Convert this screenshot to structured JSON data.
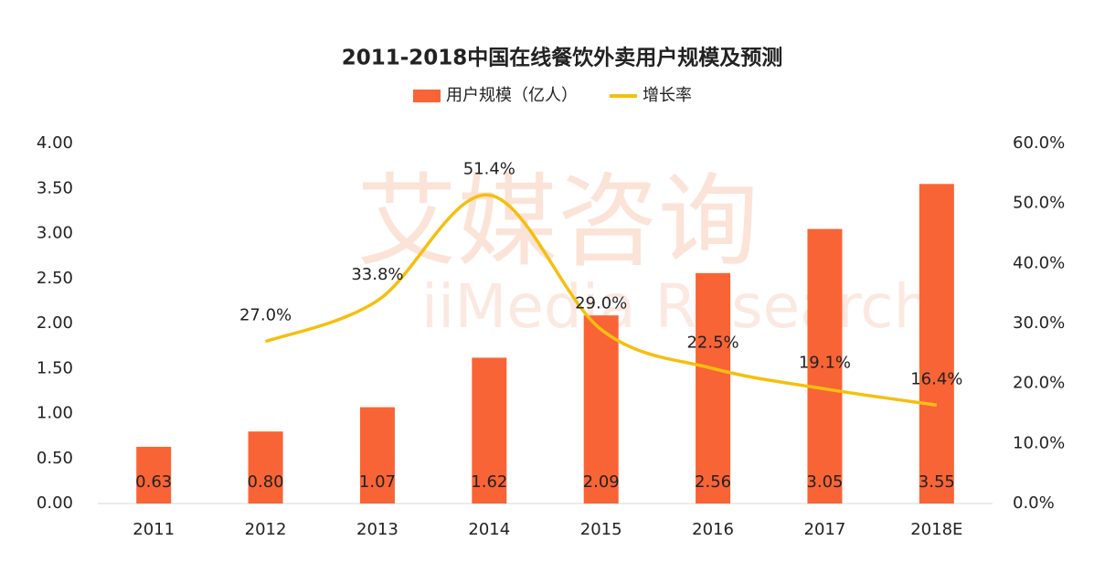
{
  "chart_data": {
    "type": "bar_line",
    "title": "2011-2018中国在线餐饮外卖用户规模及预测",
    "watermark": "艾媒咨询",
    "watermark_en": "iiMedia Research",
    "categories": [
      "2011",
      "2012",
      "2013",
      "2014",
      "2015",
      "2016",
      "2017",
      "2018E"
    ],
    "series": [
      {
        "name": "用户规模（亿人）",
        "type": "bar",
        "color": "#f86436",
        "values": [
          0.63,
          0.8,
          1.07,
          1.62,
          2.09,
          2.56,
          3.05,
          3.55
        ],
        "value_labels": [
          "0.63",
          "0.80",
          "1.07",
          "1.62",
          "2.09",
          "2.56",
          "3.05",
          "3.55"
        ]
      },
      {
        "name": "增长率",
        "type": "line",
        "axis": "y2",
        "color": "#f5bf0e",
        "values": [
          null,
          27.0,
          33.8,
          51.4,
          29.0,
          22.5,
          19.1,
          16.4
        ],
        "value_labels": [
          null,
          "27.0%",
          "33.8%",
          "51.4%",
          "29.0%",
          "22.5%",
          "19.1%",
          "16.4%"
        ]
      }
    ],
    "ylim": [
      0,
      4
    ],
    "yticks": [
      {
        "value": 0,
        "label": "0.00"
      },
      {
        "value": 0.5,
        "label": "0.50"
      },
      {
        "value": 1,
        "label": "1.00"
      },
      {
        "value": 1.5,
        "label": "1.50"
      },
      {
        "value": 2,
        "label": "2.00"
      },
      {
        "value": 2.5,
        "label": "2.50"
      },
      {
        "value": 3,
        "label": "3.00"
      },
      {
        "value": 3.5,
        "label": "3.50"
      },
      {
        "value": 4,
        "label": "4.00"
      }
    ],
    "y2lim": [
      0,
      60
    ],
    "y2ticks": [
      {
        "value": 0,
        "label": "0.0%"
      },
      {
        "value": 10,
        "label": "10.0%"
      },
      {
        "value": 20,
        "label": "20.0%"
      },
      {
        "value": 30,
        "label": "30.0%"
      },
      {
        "value": 40,
        "label": "40.0%"
      },
      {
        "value": 50,
        "label": "50.0%"
      },
      {
        "value": 60,
        "label": "60.0%"
      }
    ],
    "grid": false
  }
}
